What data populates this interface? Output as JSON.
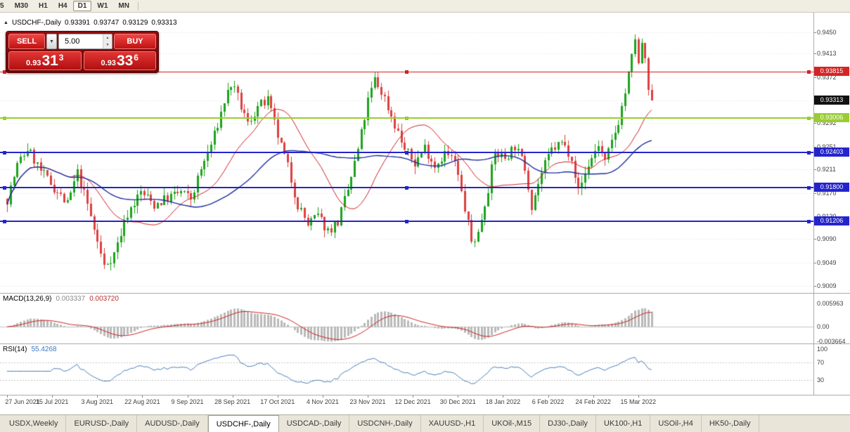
{
  "toolbar": {
    "timeframes": [
      {
        "label": "5",
        "active": false
      },
      {
        "label": "M30",
        "active": false
      },
      {
        "label": "H1",
        "active": false
      },
      {
        "label": "H4",
        "active": false
      },
      {
        "label": "D1",
        "active": true
      },
      {
        "label": "W1",
        "active": false
      },
      {
        "label": "MN",
        "active": false
      }
    ]
  },
  "chart_header": {
    "collapse_icon": "▲",
    "symbol": "USDCHF-,Daily",
    "open": "0.93391",
    "high": "0.93747",
    "low": "0.93129",
    "close": "0.93313"
  },
  "trade_panel": {
    "sell_label": "SELL",
    "buy_label": "BUY",
    "volume": "5.00",
    "dropdown_icon": "▼",
    "spin_up_icon": "▲",
    "spin_down_icon": "▼",
    "sell_price": {
      "prefix": "0.93",
      "big": "31",
      "sup": "3"
    },
    "buy_price": {
      "prefix": "0.93",
      "big": "33",
      "sup": "6"
    }
  },
  "price_axis": {
    "labels": [
      {
        "text": "0.9450",
        "value": 0.945
      },
      {
        "text": "0.9413",
        "value": 0.9413
      },
      {
        "text": "0.9372",
        "value": 0.9372
      },
      {
        "text": "0.9331",
        "value": 0.9331
      },
      {
        "text": "0.9292",
        "value": 0.9292
      },
      {
        "text": "0.9251",
        "value": 0.9251
      },
      {
        "text": "0.9211",
        "value": 0.9211
      },
      {
        "text": "0.9170",
        "value": 0.917
      },
      {
        "text": "0.9130",
        "value": 0.913
      },
      {
        "text": "0.9090",
        "value": 0.909
      },
      {
        "text": "0.9049",
        "value": 0.9049
      },
      {
        "text": "0.9009",
        "value": 0.9009
      }
    ]
  },
  "line_tags": [
    {
      "text": "0.93815",
      "value": 0.93815,
      "bg": "#d42424",
      "fg": "#ffffff",
      "name": "resistance-price-tag"
    },
    {
      "text": "0.93313",
      "value": 0.93313,
      "bg": "#111111",
      "fg": "#ffffff",
      "name": "current-price-tag"
    },
    {
      "text": "0.93006",
      "value": 0.93006,
      "bg": "#9acd32",
      "fg": "#ffffff",
      "name": "support-price-tag"
    },
    {
      "text": "0.92403",
      "value": 0.92403,
      "bg": "#2424cc",
      "fg": "#ffffff",
      "name": "support-price-tag"
    },
    {
      "text": "0.91800",
      "value": 0.918,
      "bg": "#2424cc",
      "fg": "#ffffff",
      "name": "support-price-tag"
    },
    {
      "text": "0.91206",
      "value": 0.91206,
      "bg": "#2424cc",
      "fg": "#ffffff",
      "name": "support-price-tag"
    }
  ],
  "indicators": {
    "macd": {
      "label": "MACD(13,26,9)",
      "value_main": "0.003337",
      "value_signal": "0.003720",
      "axis_labels": [
        {
          "text": "0.005963",
          "value": 0.005963
        },
        {
          "text": "0.00",
          "value": 0
        },
        {
          "text": "-0.003664",
          "value": -0.003664
        }
      ]
    },
    "rsi": {
      "label": "RSI(14)",
      "value": "55.4268",
      "levels": [
        70,
        30
      ],
      "axis_labels": [
        {
          "text": "100",
          "value": 100
        },
        {
          "text": "70",
          "value": 70
        },
        {
          "text": "30",
          "value": 30
        }
      ]
    }
  },
  "date_axis": {
    "labels": [
      {
        "text": "27 Jun 2021",
        "bar": 0
      },
      {
        "text": "15 Jul 2021",
        "bar": 13.5
      },
      {
        "text": "3 Aug 2021",
        "bar": 27
      },
      {
        "text": "22 Aug 2021",
        "bar": 40.5
      },
      {
        "text": "9 Sep 2021",
        "bar": 54
      },
      {
        "text": "28 Sep 2021",
        "bar": 67.5
      },
      {
        "text": "17 Oct 2021",
        "bar": 81
      },
      {
        "text": "4 Nov 2021",
        "bar": 94.5
      },
      {
        "text": "23 Nov 2021",
        "bar": 108
      },
      {
        "text": "12 Dec 2021",
        "bar": 121.5
      },
      {
        "text": "30 Dec 2021",
        "bar": 135
      },
      {
        "text": "18 Jan 2022",
        "bar": 148.5
      },
      {
        "text": "6 Feb 2022",
        "bar": 162
      },
      {
        "text": "24 Feb 2022",
        "bar": 175.5
      },
      {
        "text": "15 Mar 2022",
        "bar": 189
      }
    ]
  },
  "tabs": [
    {
      "label": "USDX,Weekly",
      "active": false
    },
    {
      "label": "EURUSD-,Daily",
      "active": false
    },
    {
      "label": "AUDUSD-,Daily",
      "active": false
    },
    {
      "label": "USDCHF-,Daily",
      "active": true
    },
    {
      "label": "USDCAD-,Daily",
      "active": false
    },
    {
      "label": "USDCNH-,Daily",
      "active": false
    },
    {
      "label": "XAUUSD-,H1",
      "active": false
    },
    {
      "label": "UKOil-,M15",
      "active": false
    },
    {
      "label": "DJ30-,Daily",
      "active": false
    },
    {
      "label": "UK100-,H1",
      "active": false
    },
    {
      "label": "USOil-,H4",
      "active": false
    },
    {
      "label": "HK50-,Daily",
      "active": false
    }
  ],
  "chart_data": {
    "type": "candlestick",
    "symbol": "USDCHF-",
    "timeframe": "Daily",
    "ohlc_current": {
      "open": 0.93391,
      "high": 0.93747,
      "low": 0.93129,
      "close": 0.93313
    },
    "current_price": 0.93313,
    "bars": 194,
    "price_range_visible": [
      0.9,
      0.9472
    ],
    "colors": {
      "up": "#1ca31c",
      "down": "#dc4040",
      "ma_fast": "#cc2020",
      "ma_slow": "#1c2d9e",
      "macd_hist": "#b9b9b9",
      "macd_signal": "#cc2020",
      "rsi_line": "#4a7ebb",
      "grid": "#e4e4e4"
    },
    "moving_averages": [
      {
        "period": 20
      },
      {
        "period": 45
      }
    ],
    "horizontal_lines": [
      {
        "value": 0.93815,
        "color": "#d42424",
        "width": 1
      },
      {
        "value": 0.93006,
        "color": "#9acd32",
        "width": 2
      },
      {
        "value": 0.92403,
        "color": "#2424cc",
        "width": 2
      },
      {
        "value": 0.918,
        "color": "#2424cc",
        "width": 2
      },
      {
        "value": 0.91206,
        "color": "#2424cc",
        "width": 2
      }
    ],
    "macd_params": {
      "fast": 13,
      "slow": 26,
      "signal": 9
    },
    "rsi_params": {
      "period": 14
    },
    "anchors": [
      [
        0,
        0.916
      ],
      [
        3,
        0.9218
      ],
      [
        6,
        0.9248
      ],
      [
        10,
        0.9208
      ],
      [
        14,
        0.918
      ],
      [
        18,
        0.915
      ],
      [
        21,
        0.9205
      ],
      [
        24,
        0.915
      ],
      [
        27,
        0.9085
      ],
      [
        29,
        0.9042
      ],
      [
        32,
        0.9065
      ],
      [
        36,
        0.9135
      ],
      [
        40,
        0.9172
      ],
      [
        44,
        0.915
      ],
      [
        48,
        0.9162
      ],
      [
        52,
        0.9172
      ],
      [
        55,
        0.916
      ],
      [
        58,
        0.921
      ],
      [
        62,
        0.927
      ],
      [
        65,
        0.933
      ],
      [
        67,
        0.936
      ],
      [
        69,
        0.9335
      ],
      [
        72,
        0.929
      ],
      [
        75,
        0.932
      ],
      [
        78,
        0.933
      ],
      [
        81,
        0.927
      ],
      [
        84,
        0.9215
      ],
      [
        87,
        0.915
      ],
      [
        90,
        0.9115
      ],
      [
        93,
        0.913
      ],
      [
        96,
        0.9105
      ],
      [
        99,
        0.912
      ],
      [
        102,
        0.9175
      ],
      [
        105,
        0.9245
      ],
      [
        108,
        0.933
      ],
      [
        110,
        0.9368
      ],
      [
        113,
        0.9335
      ],
      [
        116,
        0.929
      ],
      [
        119,
        0.9245
      ],
      [
        122,
        0.9222
      ],
      [
        125,
        0.925
      ],
      [
        128,
        0.9218
      ],
      [
        131,
        0.924
      ],
      [
        134,
        0.9224
      ],
      [
        136,
        0.917
      ],
      [
        138,
        0.9115
      ],
      [
        139,
        0.9085
      ],
      [
        141,
        0.91
      ],
      [
        144,
        0.918
      ],
      [
        146,
        0.924
      ],
      [
        149,
        0.9232
      ],
      [
        152,
        0.9252
      ],
      [
        155,
        0.9215
      ],
      [
        157,
        0.915
      ],
      [
        160,
        0.9205
      ],
      [
        163,
        0.9245
      ],
      [
        166,
        0.9258
      ],
      [
        169,
        0.9235
      ],
      [
        171,
        0.9172
      ],
      [
        174,
        0.922
      ],
      [
        177,
        0.9255
      ],
      [
        179,
        0.9222
      ],
      [
        181,
        0.9258
      ],
      [
        183,
        0.9295
      ],
      [
        185,
        0.9345
      ],
      [
        187,
        0.9405
      ],
      [
        188,
        0.9442
      ],
      [
        189,
        0.939
      ],
      [
        190,
        0.9432
      ],
      [
        191,
        0.9395
      ],
      [
        192,
        0.935
      ],
      [
        193,
        0.9331
      ]
    ]
  }
}
